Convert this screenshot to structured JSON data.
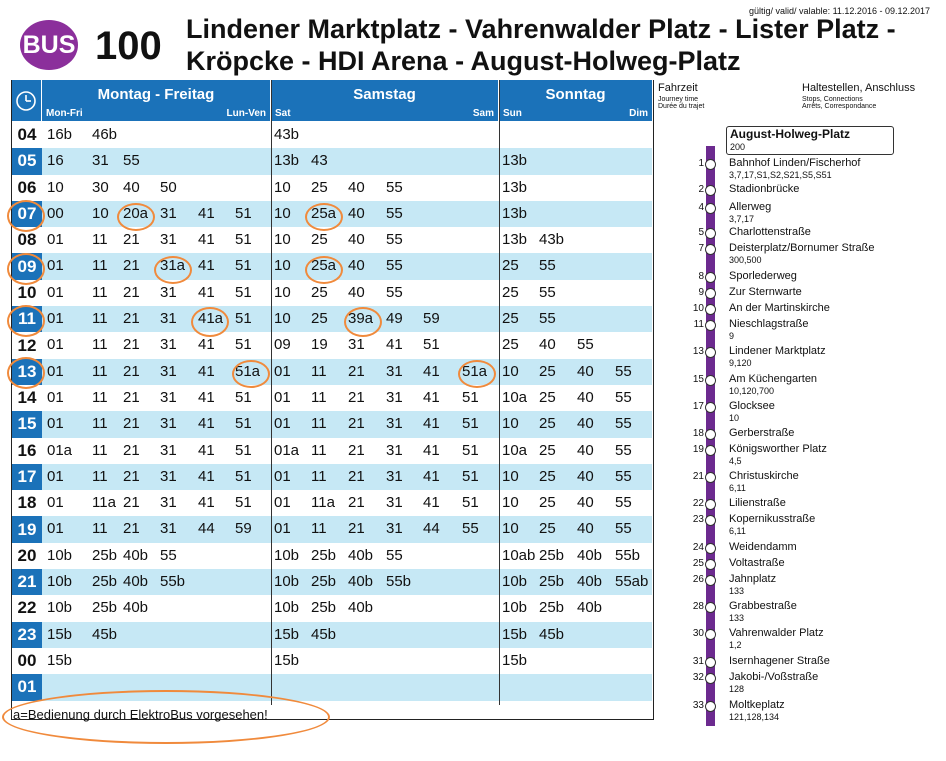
{
  "header": {
    "badge": "BUS",
    "line": "100",
    "route_line1": "Lindener Marktplatz - Vahrenwalder Platz - Lister Platz -",
    "route_line2": "Kröpcke - HDI Arena - August-Holweg-Platz",
    "validity": "gültig/ valid/ valable: 11.12.2016 - 09.12.2017"
  },
  "columns": {
    "weekday": {
      "title": "Montag - Freitag",
      "left": "Mon-Fri",
      "right": "Lun-Ven"
    },
    "saturday": {
      "title": "Samstag",
      "left": "Sat",
      "right": "Sam"
    },
    "sunday": {
      "title": "Sonntag",
      "left": "Sun",
      "right": "Dim"
    }
  },
  "stops_header": {
    "travel_time": "Fahrzeit",
    "travel_time_sub1": "Journey time",
    "travel_time_sub2": "Durée du trajet",
    "stops": "Haltestellen, Anschluss",
    "stops_sub1": "Stops, Connections",
    "stops_sub2": "Arrêts, Correspondance"
  },
  "terminus": {
    "name": "August-Holweg-Platz",
    "connections": "200"
  },
  "rows": [
    {
      "hour": "04",
      "wd": [
        "16b",
        "46b"
      ],
      "sa": [
        "43b"
      ],
      "su": []
    },
    {
      "hour": "05",
      "wd": [
        "16",
        "31",
        "55"
      ],
      "sa": [
        "13b",
        "43"
      ],
      "su": [
        "13b"
      ]
    },
    {
      "hour": "06",
      "wd": [
        "10",
        "30",
        "40",
        "50"
      ],
      "sa": [
        "10",
        "25",
        "40",
        "55"
      ],
      "su": [
        "13b"
      ]
    },
    {
      "hour": "07",
      "wd": [
        "00",
        "10",
        "20a",
        "31",
        "41",
        "51"
      ],
      "sa": [
        "10",
        "25a",
        "40",
        "55"
      ],
      "su": [
        "13b"
      ]
    },
    {
      "hour": "08",
      "wd": [
        "01",
        "11",
        "21",
        "31",
        "41",
        "51"
      ],
      "sa": [
        "10",
        "25",
        "40",
        "55"
      ],
      "su": [
        "13b",
        "43b"
      ]
    },
    {
      "hour": "09",
      "wd": [
        "01",
        "11",
        "21",
        "31a",
        "41",
        "51"
      ],
      "sa": [
        "10",
        "25a",
        "40",
        "55"
      ],
      "su": [
        "25",
        "55"
      ]
    },
    {
      "hour": "10",
      "wd": [
        "01",
        "11",
        "21",
        "31",
        "41",
        "51"
      ],
      "sa": [
        "10",
        "25",
        "40",
        "55"
      ],
      "su": [
        "25",
        "55"
      ]
    },
    {
      "hour": "11",
      "wd": [
        "01",
        "11",
        "21",
        "31",
        "41a",
        "51"
      ],
      "sa": [
        "10",
        "25",
        "39a",
        "49",
        "59"
      ],
      "su": [
        "25",
        "55"
      ]
    },
    {
      "hour": "12",
      "wd": [
        "01",
        "11",
        "21",
        "31",
        "41",
        "51"
      ],
      "sa": [
        "09",
        "19",
        "31",
        "41",
        "51"
      ],
      "su": [
        "25",
        "40",
        "55"
      ]
    },
    {
      "hour": "13",
      "wd": [
        "01",
        "11",
        "21",
        "31",
        "41",
        "51a"
      ],
      "sa": [
        "01",
        "11",
        "21",
        "31",
        "41",
        "51a"
      ],
      "su": [
        "10",
        "25",
        "40",
        "55"
      ]
    },
    {
      "hour": "14",
      "wd": [
        "01",
        "11",
        "21",
        "31",
        "41",
        "51"
      ],
      "sa": [
        "01",
        "11",
        "21",
        "31",
        "41",
        "51"
      ],
      "su": [
        "10a",
        "25",
        "40",
        "55"
      ]
    },
    {
      "hour": "15",
      "wd": [
        "01",
        "11",
        "21",
        "31",
        "41",
        "51"
      ],
      "sa": [
        "01",
        "11",
        "21",
        "31",
        "41",
        "51"
      ],
      "su": [
        "10",
        "25",
        "40",
        "55"
      ]
    },
    {
      "hour": "16",
      "wd": [
        "01a",
        "11",
        "21",
        "31",
        "41",
        "51"
      ],
      "sa": [
        "01a",
        "11",
        "21",
        "31",
        "41",
        "51"
      ],
      "su": [
        "10a",
        "25",
        "40",
        "55"
      ]
    },
    {
      "hour": "17",
      "wd": [
        "01",
        "11",
        "21",
        "31",
        "41",
        "51"
      ],
      "sa": [
        "01",
        "11",
        "21",
        "31",
        "41",
        "51"
      ],
      "su": [
        "10",
        "25",
        "40",
        "55"
      ]
    },
    {
      "hour": "18",
      "wd": [
        "01",
        "11a",
        "21",
        "31",
        "41",
        "51"
      ],
      "sa": [
        "01",
        "11a",
        "21",
        "31",
        "41",
        "51"
      ],
      "su": [
        "10",
        "25",
        "40",
        "55"
      ]
    },
    {
      "hour": "19",
      "wd": [
        "01",
        "11",
        "21",
        "31",
        "44",
        "59"
      ],
      "sa": [
        "01",
        "11",
        "21",
        "31",
        "44",
        "55"
      ],
      "su": [
        "10",
        "25",
        "40",
        "55"
      ]
    },
    {
      "hour": "20",
      "wd": [
        "10b",
        "25b",
        "40b",
        "55"
      ],
      "sa": [
        "10b",
        "25b",
        "40b",
        "55"
      ],
      "su": [
        "10ab",
        "25b",
        "40b",
        "55b"
      ]
    },
    {
      "hour": "21",
      "wd": [
        "10b",
        "25b",
        "40b",
        "55b"
      ],
      "sa": [
        "10b",
        "25b",
        "40b",
        "55b"
      ],
      "su": [
        "10b",
        "25b",
        "40b",
        "55ab"
      ]
    },
    {
      "hour": "22",
      "wd": [
        "10b",
        "25b",
        "40b"
      ],
      "sa": [
        "10b",
        "25b",
        "40b"
      ],
      "su": [
        "10b",
        "25b",
        "40b"
      ]
    },
    {
      "hour": "23",
      "wd": [
        "15b",
        "45b"
      ],
      "sa": [
        "15b",
        "45b"
      ],
      "su": [
        "15b",
        "45b"
      ]
    },
    {
      "hour": "00",
      "wd": [
        "15b"
      ],
      "sa": [
        "15b"
      ],
      "su": [
        "15b"
      ]
    },
    {
      "hour": "01",
      "wd": [],
      "sa": [],
      "su": []
    }
  ],
  "footnote": "a=Bedienung durch ElektroBus vorgesehen!",
  "stops": [
    {
      "min": "1",
      "name": "Bahnhof Linden/Fischerhof",
      "conn": "3,7,17,S1,S2,S21,S5,S51"
    },
    {
      "min": "2",
      "name": "Stadionbrücke",
      "conn": ""
    },
    {
      "min": "4",
      "name": "Allerweg",
      "conn": "3,7,17"
    },
    {
      "min": "5",
      "name": "Charlottenstraße",
      "conn": ""
    },
    {
      "min": "7",
      "name": "Deisterplatz/Bornumer Straße",
      "conn": "300,500"
    },
    {
      "min": "8",
      "name": "Sporlederweg",
      "conn": ""
    },
    {
      "min": "9",
      "name": "Zur Sternwarte",
      "conn": ""
    },
    {
      "min": "10",
      "name": "An der Martinskirche",
      "conn": ""
    },
    {
      "min": "11",
      "name": "Nieschlagstraße",
      "conn": "9"
    },
    {
      "min": "13",
      "name": "Lindener Marktplatz",
      "conn": "9,120"
    },
    {
      "min": "15",
      "name": "Am Küchengarten",
      "conn": "10,120,700"
    },
    {
      "min": "17",
      "name": "Glocksee",
      "conn": "10"
    },
    {
      "min": "18",
      "name": "Gerberstraße",
      "conn": ""
    },
    {
      "min": "19",
      "name": "Königsworther Platz",
      "conn": "4,5"
    },
    {
      "min": "21",
      "name": "Christuskirche",
      "conn": "6,11"
    },
    {
      "min": "22",
      "name": "Lilienstraße",
      "conn": ""
    },
    {
      "min": "23",
      "name": "Kopernikusstraße",
      "conn": "6,11"
    },
    {
      "min": "24",
      "name": "Weidendamm",
      "conn": ""
    },
    {
      "min": "25",
      "name": "Voltastraße",
      "conn": ""
    },
    {
      "min": "26",
      "name": "Jahnplatz",
      "conn": "133"
    },
    {
      "min": "28",
      "name": "Grabbestraße",
      "conn": "133"
    },
    {
      "min": "30",
      "name": "Vahrenwalder Platz",
      "conn": "1,2"
    },
    {
      "min": "31",
      "name": "Isernhagener Straße",
      "conn": ""
    },
    {
      "min": "32",
      "name": "Jakobi-/Voßstraße",
      "conn": "128"
    },
    {
      "min": "33",
      "name": "Moltkeplatz",
      "conn": "121,128,134"
    }
  ],
  "colors": {
    "blue": "#1b72b9",
    "light_blue": "#c6e8f5",
    "purple": "#8b2f9b",
    "orange": "#f08a3c"
  }
}
